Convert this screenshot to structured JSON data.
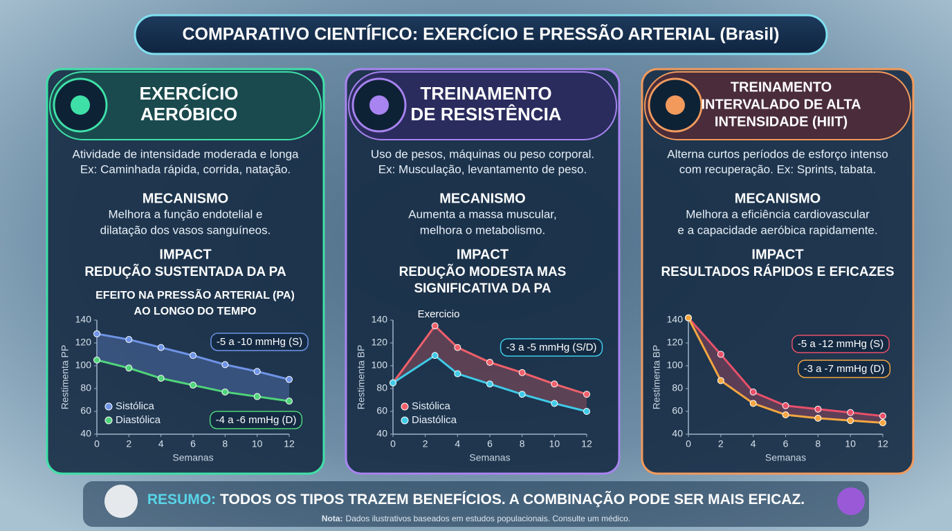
{
  "title": "COMPARATIVO CIENTÍFICO: EXERCÍCIO E PRESSÃO ARTERIAL (Brasil)",
  "panels": [
    {
      "heading": [
        "EXERCÍCIO",
        "AERÓBICO"
      ],
      "description": [
        "Atividade de intensidade moderada e longa",
        "Ex: Caminhada rápida, corrida, natação."
      ],
      "mechanism_label": "MECANISMO",
      "mechanism": [
        "Melhora a função endotelial e",
        "dilatação dos vasos sanguíneos."
      ],
      "impact_label": "IMPACT",
      "impact": [
        "REDUÇÃO SUSTENTADA DA PA"
      ]
    },
    {
      "heading": [
        "TREINAMENTO",
        "DE RESISTÊNCIA"
      ],
      "description": [
        "Uso de pesos, máquinas ou peso corporal.",
        "Ex: Musculação, levantamento de peso."
      ],
      "mechanism_label": "MECANISMO",
      "mechanism": [
        "Aumenta a massa muscular,",
        "melhora o metabolismo."
      ],
      "impact_label": "IMPACT",
      "impact": [
        "REDUÇÃO MODESTA MAS",
        "SIGNIFICATIVA DA PA"
      ]
    },
    {
      "heading": [
        "TREINAMENTO",
        "INTERVALADO DE ALTA",
        "INTENSIDADE (HIIT)"
      ],
      "description": [
        "Alterna curtos períodos de esforço intenso",
        "com recuperação. Ex: Sprints, tabata."
      ],
      "mechanism_label": "MECANISMO",
      "mechanism": [
        "Melhora a eficiência cardiovascular",
        "e a capacidade aeróbica rapidamente."
      ],
      "impact_label": "IMPACT",
      "impact": [
        "RESULTADOS RÁPIDOS E EFICAZES"
      ]
    }
  ],
  "chart_data": [
    {
      "type": "line",
      "title": [
        "EFEITO NA PRESSÃO ARTERIAL (PA)",
        "AO LONGO DO TEMPO"
      ],
      "x_label": "Semanas",
      "y_label": "Restimenta PP",
      "x": [
        0,
        2,
        4,
        6,
        8,
        10,
        12
      ],
      "series": [
        {
          "name": "Sistólica",
          "color": "#6f94e8",
          "values": [
            128,
            123,
            116,
            109,
            101,
            95,
            88
          ]
        },
        {
          "name": "Diastólica",
          "color": "#4fd47a",
          "values": [
            105,
            98,
            89,
            83,
            77,
            73,
            69
          ]
        }
      ],
      "xlim": [
        0,
        12
      ],
      "ylim": [
        40,
        140
      ],
      "xticks": [
        0,
        2,
        4,
        6,
        8,
        10,
        12
      ],
      "yticks": [
        40,
        60,
        80,
        100,
        120,
        140
      ],
      "annotations": [
        "-5 a -10 mmHg (S)",
        "-4 a -6 mmHg (D)"
      ]
    },
    {
      "type": "line",
      "x_label": "Semanas",
      "y_label": "Restimenta BP",
      "x": [
        0,
        2.6,
        4,
        6,
        8,
        10,
        12
      ],
      "series": [
        {
          "name": "Sistólica",
          "color": "#f0606a",
          "values": [
            85,
            135,
            116,
            103,
            94,
            84,
            75
          ]
        },
        {
          "name": "Diastólica",
          "color": "#3fcbe8",
          "values": [
            85,
            109,
            93,
            84,
            75,
            67,
            60
          ]
        }
      ],
      "xlim": [
        0,
        12
      ],
      "ylim": [
        40,
        140
      ],
      "xticks": [
        0,
        2,
        4,
        6,
        8,
        10,
        12
      ],
      "yticks": [
        40,
        60,
        80,
        100,
        120,
        140
      ],
      "annotations": [
        "Exercicio",
        "-3 a -5 mmHg (S/D)"
      ]
    },
    {
      "type": "line",
      "x_label": "Semanas",
      "y_label": "Restimenta BP",
      "x": [
        0,
        2,
        4,
        6,
        8,
        10,
        12
      ],
      "series": [
        {
          "color": "#e8506a",
          "values": [
            142,
            110,
            77,
            65,
            62,
            59,
            56
          ]
        },
        {
          "color": "#f4a640",
          "values": [
            142,
            87,
            67,
            57,
            54,
            52,
            50
          ]
        }
      ],
      "xlim": [
        0,
        12
      ],
      "ylim": [
        40,
        140
      ],
      "xticks": [
        0,
        2,
        4,
        6,
        8,
        10,
        12
      ],
      "yticks": [
        40,
        60,
        80,
        100,
        120,
        140
      ],
      "annotations": [
        "-5 a -12 mmHg (S)",
        "-3 a -7 mmHg (D)"
      ]
    }
  ],
  "summary": {
    "label": "RESUMO:",
    "text": "TODOS OS TIPOS TRAZEM BENEFÍCIOS. A COMBINAÇÃO PODE SER MAIS EFICAZ."
  },
  "note": {
    "label": "Nota:",
    "text": "Dados ilustrativos baseados em estudos populacionais. Consulte um médico."
  }
}
